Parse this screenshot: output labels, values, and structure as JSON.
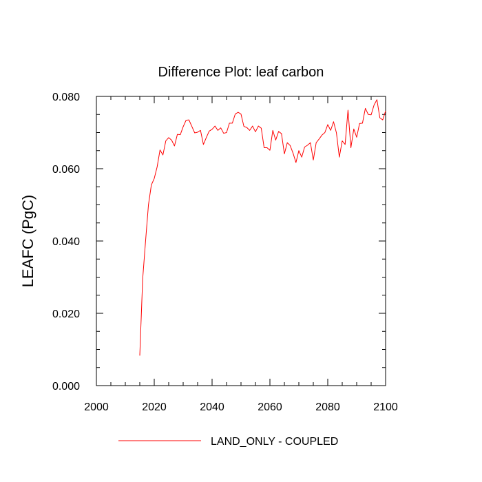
{
  "chart_data": {
    "type": "line",
    "title": "Difference Plot: leaf carbon",
    "xlabel": "",
    "ylabel": "LEAFC  (PgC)",
    "xlim": [
      2000,
      2100
    ],
    "ylim": [
      0.0,
      0.08
    ],
    "xticks": [
      2000,
      2020,
      2040,
      2060,
      2080,
      2100
    ],
    "xtick_labels": [
      "2000",
      "2020",
      "2040",
      "2060",
      "2080",
      "2100"
    ],
    "yticks": [
      0.0,
      0.02,
      0.04,
      0.06,
      0.08
    ],
    "ytick_labels": [
      "0.000",
      "0.020",
      "0.040",
      "0.060",
      "0.080"
    ],
    "grid": false,
    "legend_position": "bottom",
    "colors": {
      "series": "#ff0000",
      "axis": "#000000"
    },
    "series": [
      {
        "name": "LAND_ONLY - COUPLED",
        "x": [
          2015,
          2016,
          2017,
          2018,
          2019,
          2020,
          2021,
          2022,
          2023,
          2024,
          2025,
          2026,
          2027,
          2028,
          2029,
          2030,
          2031,
          2032,
          2033,
          2034,
          2035,
          2036,
          2037,
          2038,
          2039,
          2040,
          2041,
          2042,
          2043,
          2044,
          2045,
          2046,
          2047,
          2048,
          2049,
          2050,
          2051,
          2052,
          2053,
          2054,
          2055,
          2056,
          2057,
          2058,
          2059,
          2060,
          2061,
          2062,
          2063,
          2064,
          2065,
          2066,
          2067,
          2068,
          2069,
          2070,
          2071,
          2072,
          2073,
          2074,
          2075,
          2076,
          2077,
          2078,
          2079,
          2080,
          2081,
          2082,
          2083,
          2084,
          2085,
          2086,
          2087,
          2088,
          2089,
          2090,
          2091,
          2092,
          2093,
          2094,
          2095,
          2096,
          2097,
          2098,
          2099,
          2100
        ],
        "values": [
          0.0083,
          0.0295,
          0.04,
          0.05,
          0.0555,
          0.0573,
          0.0605,
          0.0652,
          0.0638,
          0.0677,
          0.0686,
          0.0679,
          0.0663,
          0.0695,
          0.0694,
          0.0716,
          0.0734,
          0.0735,
          0.0717,
          0.0699,
          0.0701,
          0.0706,
          0.0667,
          0.0686,
          0.0704,
          0.0709,
          0.0718,
          0.0706,
          0.0713,
          0.0698,
          0.07,
          0.0726,
          0.0726,
          0.0751,
          0.0756,
          0.0751,
          0.0717,
          0.0714,
          0.0706,
          0.0718,
          0.0702,
          0.0718,
          0.0712,
          0.0658,
          0.0658,
          0.0651,
          0.0706,
          0.0679,
          0.0703,
          0.0697,
          0.0641,
          0.0672,
          0.0664,
          0.0643,
          0.0617,
          0.065,
          0.0632,
          0.066,
          0.0665,
          0.0672,
          0.0624,
          0.0672,
          0.0682,
          0.0693,
          0.07,
          0.0722,
          0.0706,
          0.073,
          0.0699,
          0.0632,
          0.0677,
          0.0667,
          0.0762,
          0.0658,
          0.071,
          0.0687,
          0.0725,
          0.0726,
          0.0767,
          0.075,
          0.0749,
          0.0776,
          0.0791,
          0.0741,
          0.0735,
          0.076
        ]
      }
    ]
  }
}
